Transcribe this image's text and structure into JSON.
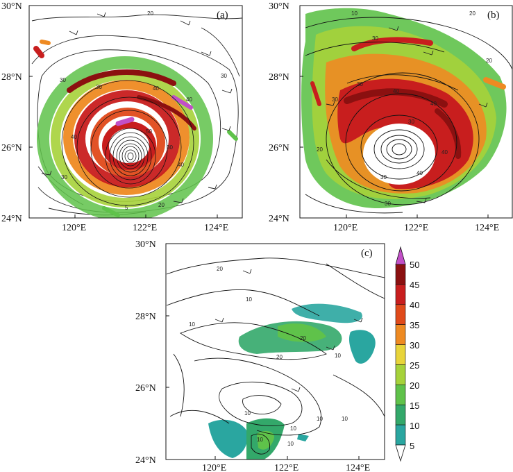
{
  "panels": [
    {
      "tag": "(a)",
      "y_ticks": [
        "30°N",
        "28°N",
        "26°N",
        "24°N"
      ],
      "x_ticks": [
        "120°E",
        "122°E",
        "124°E"
      ],
      "contour_labels": [
        "20",
        "30",
        "40",
        "40",
        "30",
        "30",
        "40",
        "30",
        "30",
        "40",
        "50",
        "20",
        "5"
      ]
    },
    {
      "tag": "(b)",
      "y_ticks": [
        "30°N",
        "28°N",
        "26°N",
        "24°N"
      ],
      "x_ticks": [
        "120°E",
        "122°E",
        "124°E"
      ],
      "contour_labels": [
        "10",
        "20",
        "30",
        "30",
        "40",
        "40",
        "30",
        "40",
        "20",
        "30",
        "40",
        "30",
        "20",
        "30"
      ]
    },
    {
      "tag": "(c)",
      "y_ticks": [
        "30°N",
        "28°N",
        "26°N",
        "24°N"
      ],
      "x_ticks": [
        "120°E",
        "122°E",
        "124°E"
      ],
      "contour_labels": [
        "20",
        "10",
        "10",
        "20",
        "20",
        "10",
        "10",
        "10",
        "10",
        "10",
        "10",
        "10"
      ]
    }
  ],
  "colorbar": {
    "labels": [
      "50",
      "45",
      "40",
      "35",
      "30",
      "25",
      "20",
      "15",
      "10",
      "5"
    ],
    "colors": [
      "#c24fc7",
      "#8b1010",
      "#c81e1e",
      "#e04a1a",
      "#ee8a22",
      "#e8d43a",
      "#a6d23a",
      "#5fc24a",
      "#33a86a",
      "#2aa6a0",
      "#ffffff"
    ]
  }
}
